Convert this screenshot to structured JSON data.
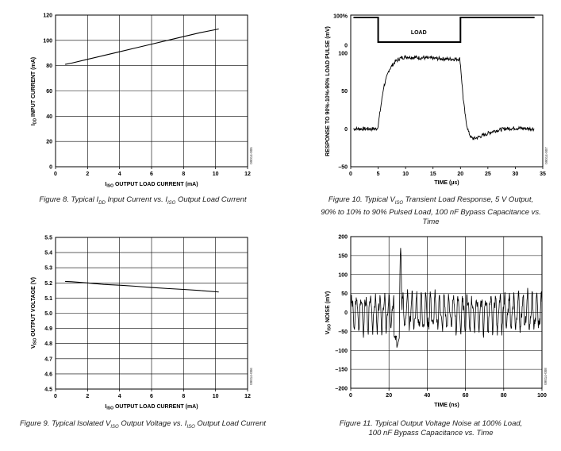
{
  "chart_data": [
    {
      "id": "fig8",
      "type": "line",
      "caption": "Figure 8. Typical IDD Input Current vs. IISO Output Load Current",
      "xlabel": "IISO OUTPUT LOAD CURRENT (mA)",
      "ylabel": "IDD INPUT CURRENT (mA)",
      "xlim": [
        0,
        12
      ],
      "ylim": [
        0,
        120
      ],
      "xticks": [
        "0",
        "2",
        "4",
        "6",
        "8",
        "10",
        "12"
      ],
      "yticks": [
        "0",
        "20",
        "40",
        "60",
        "80",
        "100",
        "120"
      ],
      "grid": true,
      "code": "09014-005",
      "series": [
        {
          "x": [
            0.6,
            1,
            2,
            3,
            4,
            5,
            6,
            7,
            8,
            9,
            10.2
          ],
          "y": [
            81,
            82,
            85,
            88,
            91,
            94,
            97,
            100,
            103,
            106,
            109
          ]
        }
      ]
    },
    {
      "id": "fig9",
      "type": "line",
      "caption": "Figure 9. Typical Isolated VISO Output Voltage vs. IISO Output Load Current",
      "xlabel": "IISO OUTPUT LOAD CURRENT (mA)",
      "ylabel": "VISO OUTPUT VOLTAGE (V)",
      "xlim": [
        0,
        12
      ],
      "ylim": [
        4.5,
        5.5
      ],
      "xticks": [
        "0",
        "2",
        "4",
        "6",
        "8",
        "10",
        "12"
      ],
      "yticks": [
        "4.5",
        "4.6",
        "4.7",
        "4.8",
        "4.9",
        "5.0",
        "5.1",
        "5.2",
        "5.3",
        "5.4",
        "5.5"
      ],
      "grid": true,
      "code": "09014-006",
      "series": [
        {
          "x": [
            0.6,
            1,
            2,
            3,
            4,
            5,
            6,
            7,
            8,
            9,
            10.2
          ],
          "y": [
            5.21,
            5.208,
            5.2,
            5.19,
            5.185,
            5.178,
            5.17,
            5.163,
            5.157,
            5.15,
            5.14
          ]
        }
      ]
    },
    {
      "id": "fig10",
      "type": "line",
      "caption": "Figure 10. Typical VISO Transient Load Response, 5 V Output, 90% to 10% to 90% Pulsed Load, 100 nF Bypass Capacitance vs. Time",
      "xlabel": "TIME (µs)",
      "ylabel": "RESPONSE TO 90%-10%-90% LOAD PULSE (mV)",
      "xlim": [
        0,
        35
      ],
      "ylim": [
        -50,
        150
      ],
      "xticks": [
        "0",
        "5",
        "10",
        "15",
        "20",
        "25",
        "30",
        "35"
      ],
      "yticks": [
        "–50",
        "0",
        "50",
        "100",
        "0",
        "100%"
      ],
      "grid": false,
      "annotation": "LOAD",
      "code": "09014-007",
      "load_pulse": {
        "high_y": 147,
        "low_y": 108,
        "t_low_start": 5,
        "t_low_end": 20,
        "x_end": 33.5
      },
      "series": [
        {
          "x": [
            0,
            4.8,
            5,
            5.5,
            6,
            7,
            8,
            9,
            10,
            12,
            15,
            18,
            19.9,
            20,
            20.5,
            21,
            21.5,
            22,
            22.5,
            24,
            26,
            28,
            30,
            33.5
          ],
          "y": [
            0,
            0,
            5,
            30,
            55,
            78,
            88,
            93,
            95,
            94,
            93,
            92,
            92,
            85,
            40,
            10,
            -5,
            -12,
            -13,
            -9,
            -3,
            0,
            1,
            0
          ]
        }
      ]
    },
    {
      "id": "fig11",
      "type": "line",
      "caption": "Figure 11. Typical Output Voltage Noise at 100% Load, 100 nF Bypass Capacitance vs. Time",
      "xlabel": "TIME (ns)",
      "ylabel": "VISO NOISE (mV)",
      "xlim": [
        0,
        100
      ],
      "ylim": [
        -200,
        200
      ],
      "xticks": [
        "0",
        "20",
        "40",
        "60",
        "80",
        "100"
      ],
      "yticks": [
        "–200",
        "–150",
        "–100",
        "–50",
        "0",
        "50",
        "100",
        "150",
        "200"
      ],
      "grid": true,
      "code": "09014-008",
      "noise_band": [
        -50,
        50
      ],
      "spike": {
        "x": 25.5,
        "y": 170,
        "dip_y": -95
      }
    }
  ],
  "figure10_caption_lines": [
    "Figure 10. Typical V",
    "ISO",
    " Transient Load Response, 5 V Output,",
    "90% to 10% to 90% Pulsed Load, 100 nF Bypass Capacitance vs. Time"
  ],
  "figure11_caption_lines": [
    "Figure 11. Typical Output Voltage Noise at 100% Load,",
    "100 nF Bypass Capacitance vs. Time"
  ]
}
